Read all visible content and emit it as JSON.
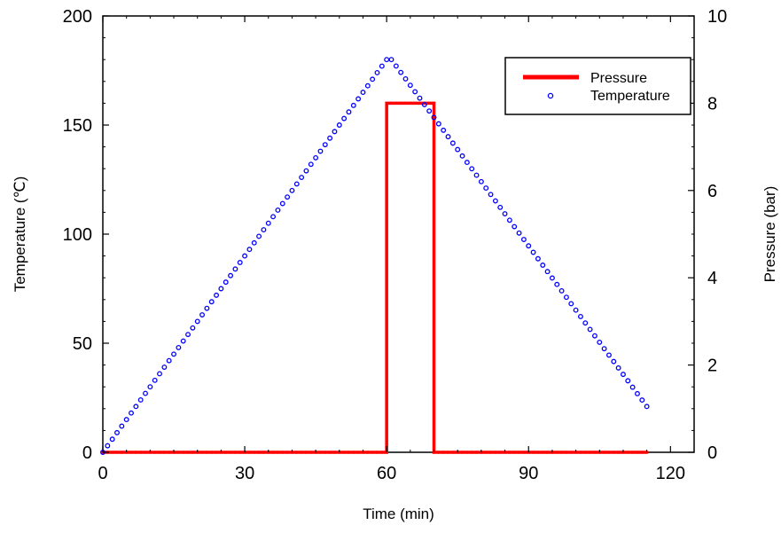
{
  "chart_data": {
    "type": "line",
    "xlabel": "Time (min)",
    "ylabel": "Temperature (℃)",
    "y2label": "Pressure (bar)",
    "xlim": [
      0,
      125
    ],
    "ylim": [
      0,
      200
    ],
    "y2lim": [
      0,
      10
    ],
    "x_ticks": [
      0,
      30,
      60,
      90,
      120
    ],
    "y_ticks": [
      0,
      50,
      100,
      150,
      200
    ],
    "y2_ticks": [
      0,
      2,
      4,
      6,
      8,
      10
    ],
    "grid": false,
    "legend": "top-right",
    "series": [
      {
        "name": "Pressure",
        "axis": "right",
        "style": "line",
        "color": "#ff0000",
        "x": [
          0,
          60,
          60,
          70,
          70,
          115
        ],
        "y": [
          0,
          0,
          8,
          8,
          0,
          0
        ]
      },
      {
        "name": "Temperature",
        "axis": "left",
        "style": "markers",
        "color": "#0000ff",
        "x": [
          0,
          60,
          61,
          115
        ],
        "y": [
          0,
          180,
          180,
          21
        ]
      }
    ]
  }
}
